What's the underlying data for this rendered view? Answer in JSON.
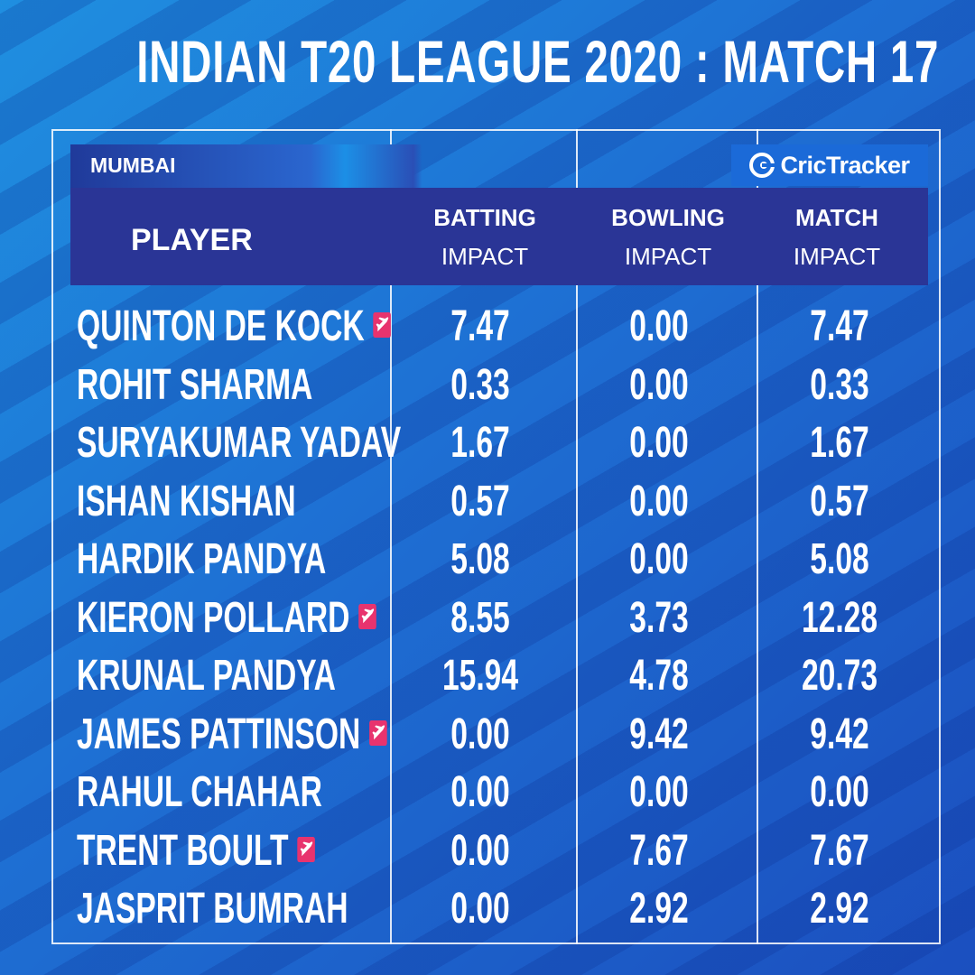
{
  "title": "INDIAN T20 LEAGUE 2020  :  MATCH 17",
  "team": "MUMBAI",
  "brand": "CricTracker",
  "headers": {
    "player": "PLAYER",
    "batting_1": "BATTING",
    "batting_2": "IMPACT",
    "bowling_1": "BOWLING",
    "bowling_2": "IMPACT",
    "match_1": "MATCH",
    "match_2": "IMPACT"
  },
  "colors": {
    "overseas_badge": "#e8336e",
    "header_band": "#2a3596"
  },
  "rows": [
    {
      "name": "QUINTON DE KOCK",
      "overseas": true,
      "batting": "7.47",
      "bowling": "0.00",
      "match": "7.47"
    },
    {
      "name": "ROHIT SHARMA",
      "overseas": false,
      "batting": "0.33",
      "bowling": "0.00",
      "match": "0.33"
    },
    {
      "name": "SURYAKUMAR YADAV",
      "overseas": false,
      "batting": "1.67",
      "bowling": "0.00",
      "match": "1.67"
    },
    {
      "name": "ISHAN KISHAN",
      "overseas": false,
      "batting": "0.57",
      "bowling": "0.00",
      "match": "0.57"
    },
    {
      "name": "HARDIK PANDYA",
      "overseas": false,
      "batting": "5.08",
      "bowling": "0.00",
      "match": "5.08"
    },
    {
      "name": "KIERON POLLARD",
      "overseas": true,
      "batting": "8.55",
      "bowling": "3.73",
      "match": "12.28"
    },
    {
      "name": "KRUNAL PANDYA",
      "overseas": false,
      "batting": "15.94",
      "bowling": "4.78",
      "match": "20.73"
    },
    {
      "name": "JAMES PATTINSON",
      "overseas": true,
      "batting": "0.00",
      "bowling": "9.42",
      "match": "9.42"
    },
    {
      "name": "RAHUL CHAHAR",
      "overseas": false,
      "batting": "0.00",
      "bowling": "0.00",
      "match": "0.00"
    },
    {
      "name": "TRENT BOULT",
      "overseas": true,
      "batting": "0.00",
      "bowling": "7.67",
      "match": "7.67"
    },
    {
      "name": "JASPRIT BUMRAH",
      "overseas": false,
      "batting": "0.00",
      "bowling": "2.92",
      "match": "2.92"
    }
  ]
}
